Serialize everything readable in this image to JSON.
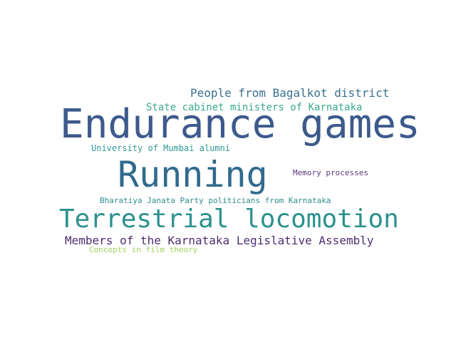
{
  "word_cloud": {
    "words": [
      {
        "id": "people-from-bagalkot-district",
        "text": "People from Bagalkot district",
        "color": "#3b6f8f"
      },
      {
        "id": "state-cabinet-ministers",
        "text": "State cabinet ministers of Karnataka",
        "color": "#3aa88a"
      },
      {
        "id": "endurance-games",
        "text": "Endurance games",
        "color": "#3d5a8c"
      },
      {
        "id": "university-of-mumbai-alumni",
        "text": "University of Mumbai alumni",
        "color": "#2f9a96"
      },
      {
        "id": "running",
        "text": "Running",
        "color": "#306a8e"
      },
      {
        "id": "memory-processes",
        "text": "Memory processes",
        "color": "#5b3a7e"
      },
      {
        "id": "bjp-politicians",
        "text": "Bharatiya Janata Party politicians from Karnataka",
        "color": "#2e8c8a"
      },
      {
        "id": "terrestrial-locomotion",
        "text": "Terrestrial locomotion",
        "color": "#2c918d"
      },
      {
        "id": "members-karnataka-assembly",
        "text": "Members of the Karnataka Legislative Assembly",
        "color": "#4b2e70"
      },
      {
        "id": "concepts-in-film-theory",
        "text": "Concepts in film theory",
        "color": "#9fd35a"
      }
    ]
  }
}
